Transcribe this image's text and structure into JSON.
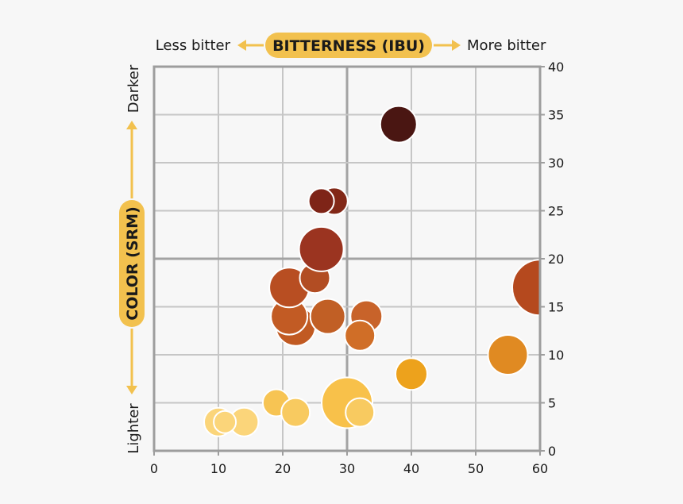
{
  "chart_data": {
    "type": "scatter",
    "subtype": "bubble",
    "x_axis": {
      "title": "BITTERNESS (IBU)",
      "low_label": "Less bitter",
      "high_label": "More bitter",
      "range": [
        0,
        60
      ],
      "ticks": [
        "0",
        "10",
        "20",
        "30",
        "40",
        "50",
        "60"
      ]
    },
    "y_axis": {
      "title": "COLOR (SRM)",
      "low_label": "Lighter",
      "high_label": "Darker",
      "range": [
        0,
        40
      ],
      "position": "right",
      "ticks": [
        "0",
        "5",
        "10",
        "15",
        "20",
        "25",
        "30",
        "35",
        "40"
      ]
    },
    "grid": true,
    "points": [
      {
        "x": 10,
        "y": 3,
        "size": 18,
        "color": "#fbd57a"
      },
      {
        "x": 14,
        "y": 3,
        "size": 18,
        "color": "#fbd57a"
      },
      {
        "x": 11,
        "y": 3,
        "size": 14,
        "color": "#fbd57a"
      },
      {
        "x": 19,
        "y": 5,
        "size": 17,
        "color": "#f7c453"
      },
      {
        "x": 22,
        "y": 4,
        "size": 18,
        "color": "#f8ca60"
      },
      {
        "x": 30,
        "y": 5,
        "size": 32,
        "color": "#f8c14a"
      },
      {
        "x": 32,
        "y": 4,
        "size": 18,
        "color": "#f8ca60"
      },
      {
        "x": 40,
        "y": 8,
        "size": 20,
        "color": "#eda21c"
      },
      {
        "x": 55,
        "y": 10,
        "size": 25,
        "color": "#e08a22"
      },
      {
        "x": 60,
        "y": 17,
        "size": 35,
        "color": "#b5491e"
      },
      {
        "x": 22,
        "y": 13,
        "size": 25,
        "color": "#c15a22"
      },
      {
        "x": 33,
        "y": 14,
        "size": 20,
        "color": "#c8632a"
      },
      {
        "x": 32,
        "y": 12,
        "size": 19,
        "color": "#d06e27"
      },
      {
        "x": 27,
        "y": 14,
        "size": 22,
        "color": "#c15f25"
      },
      {
        "x": 21,
        "y": 14,
        "size": 23,
        "color": "#c25b24"
      },
      {
        "x": 21,
        "y": 17,
        "size": 25,
        "color": "#b84e22"
      },
      {
        "x": 25,
        "y": 18,
        "size": 19,
        "color": "#b24d23"
      },
      {
        "x": 26,
        "y": 21,
        "size": 28,
        "color": "#9b3420"
      },
      {
        "x": 28,
        "y": 26,
        "size": 17,
        "color": "#822817"
      },
      {
        "x": 26,
        "y": 26,
        "size": 16,
        "color": "#7e2417"
      },
      {
        "x": 38,
        "y": 34,
        "size": 23,
        "color": "#4a1612"
      }
    ]
  },
  "colors": {
    "accent": "#f2c14e",
    "grid": "#c6c6c6",
    "grid_emphasis": "#a3a3a3",
    "frame": "#9d9d9d",
    "background": "#f7f7f7"
  }
}
